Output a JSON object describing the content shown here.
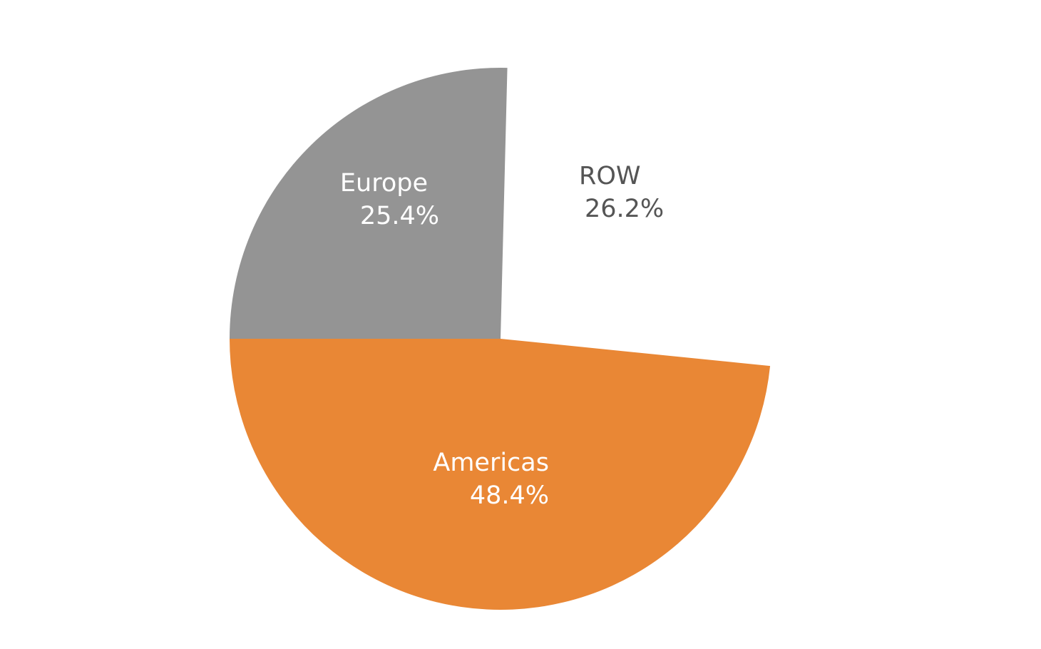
{
  "chart_data": {
    "type": "pie",
    "start_angle_deg": 1.44,
    "direction": "clockwise",
    "slices": [
      {
        "name": "ROW",
        "value": 26.2,
        "label": "26.2%",
        "color": "#ffffff",
        "label_color": "#555555"
      },
      {
        "name": "Americas",
        "value": 48.4,
        "label": "48.4%",
        "color": "#e98735",
        "label_color": "#ffffff"
      },
      {
        "name": "Europe",
        "value": 25.4,
        "label": "25.4%",
        "color": "#949494",
        "label_color": "#ffffff"
      }
    ]
  }
}
